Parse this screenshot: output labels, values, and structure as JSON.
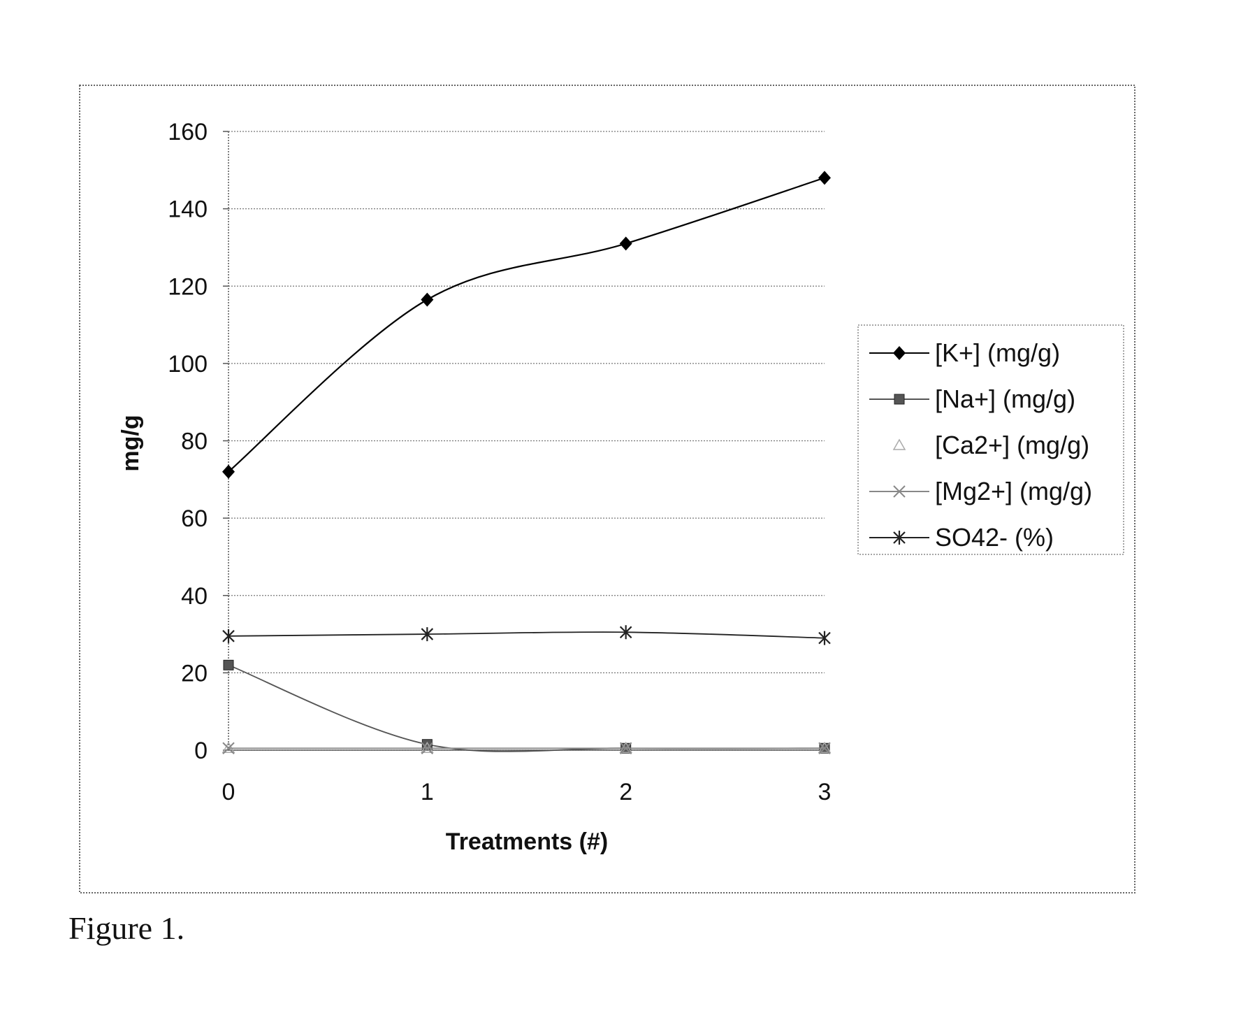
{
  "caption": "Figure 1.",
  "chart_data": {
    "type": "line",
    "x": [
      0,
      1,
      2,
      3
    ],
    "xlabel": "Treatments (#)",
    "ylabel": "mg/g",
    "ylim": [
      0,
      160
    ],
    "yticks": [
      0,
      20,
      40,
      60,
      80,
      100,
      120,
      140,
      160
    ],
    "grid": true,
    "legend_position": "right",
    "series": [
      {
        "name": "[K+] (mg/g)",
        "values": [
          72,
          116.5,
          131,
          148
        ],
        "marker": "diamond",
        "color": "#000000"
      },
      {
        "name": "[Na+] (mg/g)",
        "values": [
          22,
          1.5,
          0.5,
          0.5
        ],
        "marker": "square",
        "color": "#555555"
      },
      {
        "name": "[Ca2+] (mg/g)",
        "values": [
          0.5,
          0.5,
          0.5,
          0.5
        ],
        "marker": "triangle",
        "color": "#aaaaaa"
      },
      {
        "name": "[Mg2+] (mg/g)",
        "values": [
          0.5,
          0.5,
          0.5,
          0.5
        ],
        "marker": "x",
        "color": "#888888"
      },
      {
        "name": "SO42- (%)",
        "values": [
          29.5,
          30,
          30.5,
          29
        ],
        "marker": "asterisk",
        "color": "#222222"
      }
    ]
  }
}
